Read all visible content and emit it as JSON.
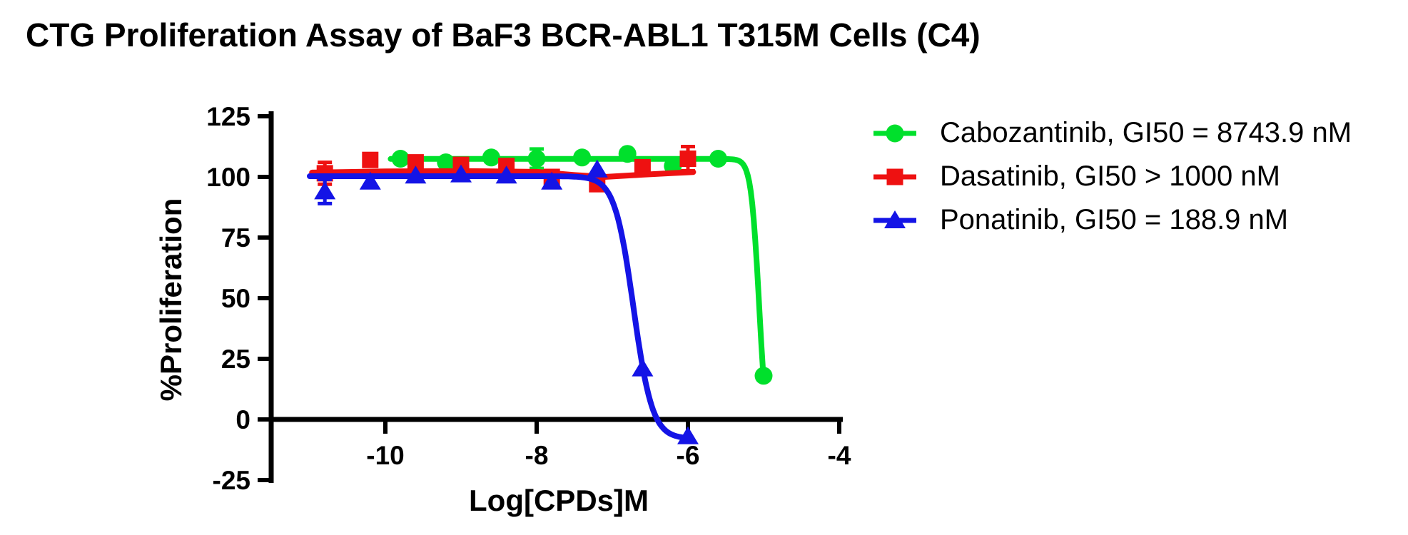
{
  "title": "CTG Proliferation Assay of BaF3 BCR-ABL1 T315M Cells (C4)",
  "chart_data": {
    "type": "line",
    "title": "CTG Proliferation Assay of BaF3 BCR-ABL1 T315M Cells (C4)",
    "xlabel": "Log[CPDs]M",
    "ylabel": "%Proliferation",
    "xlim": [
      -11.5,
      -4
    ],
    "ylim": [
      -25,
      125
    ],
    "x_ticks": [
      -10,
      -8,
      -6,
      -4
    ],
    "y_ticks": [
      125,
      100,
      75,
      50,
      25,
      0,
      -25
    ],
    "grid": false,
    "legend_position": "right-of-plot",
    "background_color": "#ffffff",
    "axis_color": "#000000",
    "series": [
      {
        "name": "Cabozantinib, GI50 = 8743.9 nM",
        "drug": "Cabozantinib",
        "gi50": "GI50 = 8743.9 nM",
        "color": "#00e02c",
        "marker": "circle",
        "x": [
          -9.8,
          -9.2,
          -8.6,
          -8.0,
          -7.4,
          -6.8,
          -6.2,
          -5.6,
          -5.0
        ],
        "y": [
          107.5,
          106,
          108,
          107.5,
          108,
          109.5,
          104.5,
          107.5,
          18
        ],
        "err": [
          0,
          0,
          0,
          4,
          0,
          0,
          0,
          0,
          0
        ],
        "fit": {
          "type": "logistic",
          "top": 107.4,
          "bottom": -12,
          "log_gi50": -5.06,
          "hill": 8.2,
          "range": [
            -9.93,
            -5.0
          ]
        }
      },
      {
        "name": "Dasatinib, GI50 > 1000 nM",
        "drug": "Dasatinib",
        "gi50": "GI50 > 1000 nM",
        "color": "#ee1111",
        "marker": "square",
        "x": [
          -10.8,
          -10.2,
          -9.6,
          -9.0,
          -8.4,
          -7.8,
          -7.2,
          -6.6,
          -6.0
        ],
        "y": [
          101.5,
          107,
          106,
          105,
          104.5,
          100,
          97,
          104,
          107.5
        ],
        "err": [
          4.5,
          0,
          0,
          0,
          0,
          0,
          0,
          0,
          5
        ],
        "fit": {
          "type": "points",
          "points": [
            [
              -10.97,
              101.8
            ],
            [
              -10.0,
              102.3
            ],
            [
              -9.0,
              102.4
            ],
            [
              -8.0,
              102.1
            ],
            [
              -7.5,
              100.8
            ],
            [
              -7.1,
              100.0
            ],
            [
              -6.6,
              100.9
            ],
            [
              -6.2,
              101.6
            ],
            [
              -5.93,
              102.0
            ]
          ]
        }
      },
      {
        "name": "Ponatinib, GI50 = 188.9 nM",
        "drug": "Ponatinib",
        "gi50": "GI50 = 188.9 nM",
        "color": "#1414e6",
        "marker": "triangle",
        "x": [
          -10.8,
          -10.2,
          -9.6,
          -9.0,
          -8.4,
          -7.8,
          -7.2,
          -6.6,
          -6.0
        ],
        "y": [
          94,
          98,
          100.5,
          101,
          100.5,
          98,
          103,
          21,
          -7
        ],
        "err": [
          5,
          0,
          0,
          0,
          0,
          0,
          0,
          0,
          0
        ],
        "fit": {
          "type": "logistic",
          "top": 100.3,
          "bottom": -8,
          "log_gi50": -6.72,
          "hill": 3.5,
          "range": [
            -11.0,
            -6.02
          ]
        }
      }
    ]
  }
}
